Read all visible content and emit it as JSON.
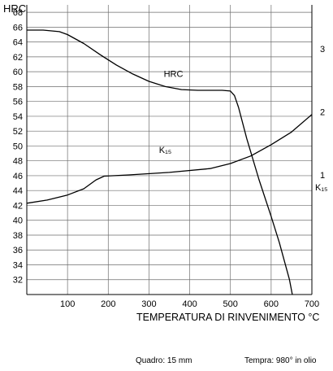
{
  "chart_data": {
    "type": "line",
    "x_axis": {
      "label": "TEMPERATURA DI RINVENIMENTO °C",
      "range": [
        0,
        700
      ],
      "ticks": [
        100,
        200,
        300,
        400,
        500,
        600,
        700
      ]
    },
    "y_axis_left": {
      "label": "HRC",
      "range": [
        30,
        69
      ],
      "ticks": [
        32,
        34,
        36,
        38,
        40,
        42,
        44,
        46,
        48,
        50,
        52,
        54,
        56,
        58,
        60,
        62,
        64,
        66,
        68
      ]
    },
    "y_axis_right": {
      "label": "K₁₅",
      "range": [
        -0.9,
        3.7
      ],
      "ticks": [
        1,
        2,
        3
      ]
    },
    "grid": true,
    "series": [
      {
        "name": "HRC",
        "axis": "left",
        "points": [
          [
            0,
            65.6
          ],
          [
            40,
            65.6
          ],
          [
            80,
            65.4
          ],
          [
            100,
            65.0
          ],
          [
            140,
            63.8
          ],
          [
            180,
            62.3
          ],
          [
            220,
            60.9
          ],
          [
            260,
            59.7
          ],
          [
            300,
            58.7
          ],
          [
            340,
            58.0
          ],
          [
            380,
            57.6
          ],
          [
            420,
            57.5
          ],
          [
            480,
            57.5
          ],
          [
            500,
            57.4
          ],
          [
            510,
            56.8
          ],
          [
            520,
            55.2
          ],
          [
            540,
            51.0
          ],
          [
            570,
            45.5
          ],
          [
            600,
            40.5
          ],
          [
            620,
            37.0
          ],
          [
            645,
            32.0
          ],
          [
            652,
            30.0
          ]
        ]
      },
      {
        "name": "K₁₅",
        "axis": "right",
        "points": [
          [
            0,
            0.55
          ],
          [
            50,
            0.6
          ],
          [
            100,
            0.68
          ],
          [
            140,
            0.78
          ],
          [
            170,
            0.92
          ],
          [
            190,
            0.98
          ],
          [
            250,
            1.0
          ],
          [
            350,
            1.04
          ],
          [
            450,
            1.1
          ],
          [
            500,
            1.18
          ],
          [
            550,
            1.3
          ],
          [
            600,
            1.48
          ],
          [
            650,
            1.68
          ],
          [
            700,
            1.96
          ]
        ]
      }
    ],
    "annotations": [
      {
        "text": "HRC",
        "x": 360,
        "y": 59.3,
        "axis": "left"
      },
      {
        "text": "K₁₅",
        "x": 340,
        "y": 1.35,
        "axis": "right"
      }
    ]
  },
  "notes": {
    "left": "Quadro: 15 mm",
    "right": "Tempra: 980° in olio"
  }
}
